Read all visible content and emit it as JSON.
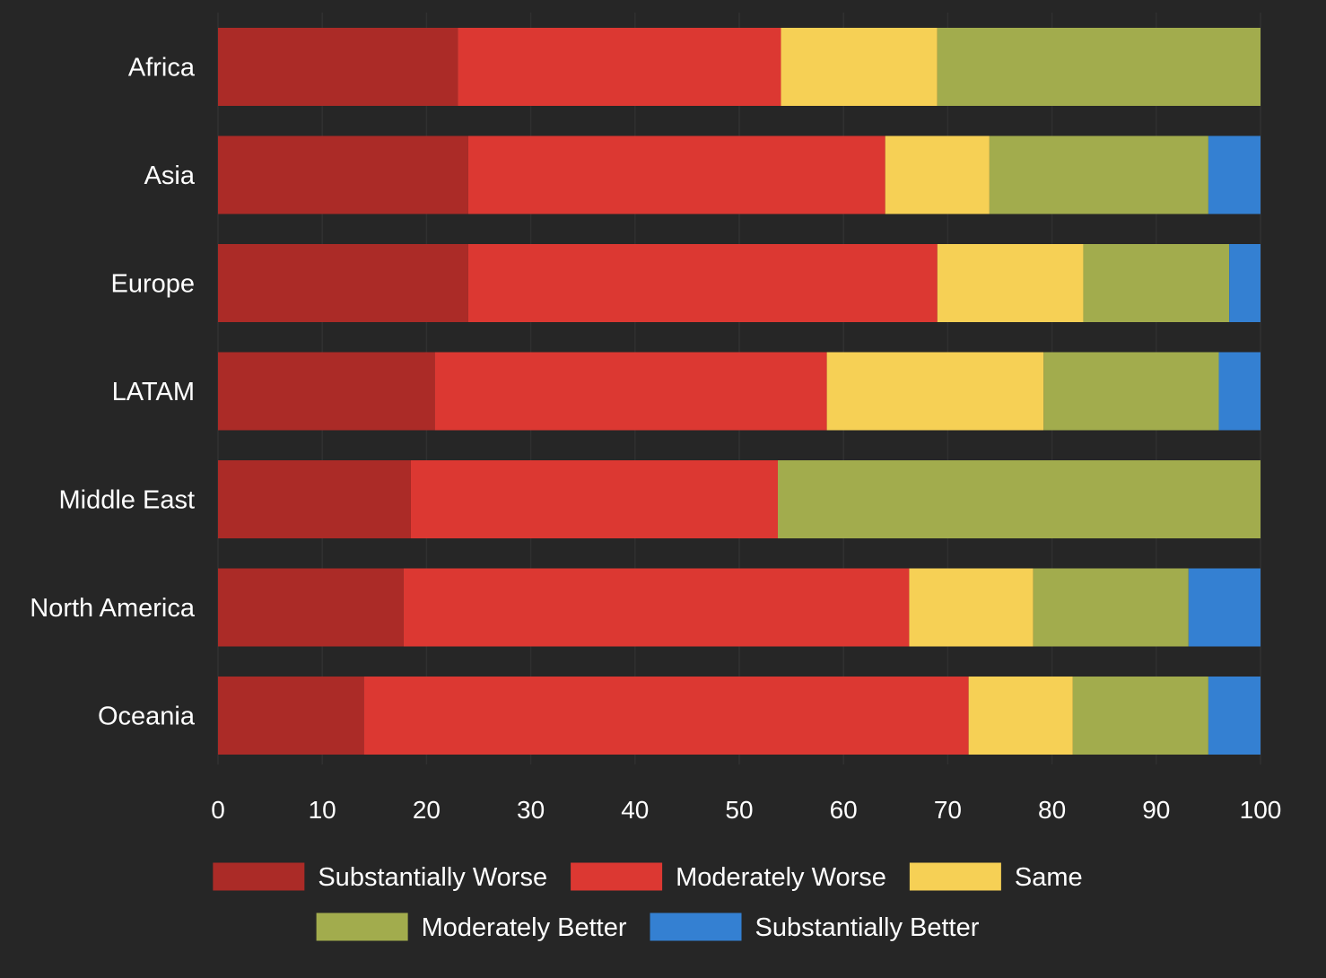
{
  "chart_data": {
    "type": "bar",
    "orientation": "horizontal",
    "stacked": true,
    "title": "",
    "xlabel": "",
    "ylabel": "",
    "categories": [
      "Africa",
      "Asia",
      "Europe",
      "LATAM",
      "Middle East",
      "North America",
      "Oceania"
    ],
    "xlim": [
      0,
      100
    ],
    "xticks": [
      "0",
      "10",
      "20",
      "30",
      "40",
      "50",
      "60",
      "70",
      "80",
      "90",
      "100"
    ],
    "grid": true,
    "legend_position": "bottom",
    "series": [
      {
        "name": "Substantially Worse",
        "color": "#ab2b27",
        "values": [
          23,
          24,
          24,
          20.8,
          18.5,
          17.8,
          14
        ]
      },
      {
        "name": "Moderately Worse",
        "color": "#dc3832",
        "values": [
          31,
          40,
          45,
          37.6,
          35.2,
          48.5,
          58
        ]
      },
      {
        "name": "Same",
        "color": "#f6d055",
        "values": [
          15,
          10,
          14,
          20.8,
          0,
          11.9,
          10
        ]
      },
      {
        "name": "Moderately Better",
        "color": "#a2ac4d",
        "values": [
          31,
          21,
          14,
          16.8,
          46.3,
          14.9,
          13
        ]
      },
      {
        "name": "Substantially Better",
        "color": "#3480d2",
        "values": [
          0,
          5,
          3,
          4,
          0,
          6.9,
          5
        ]
      }
    ]
  }
}
